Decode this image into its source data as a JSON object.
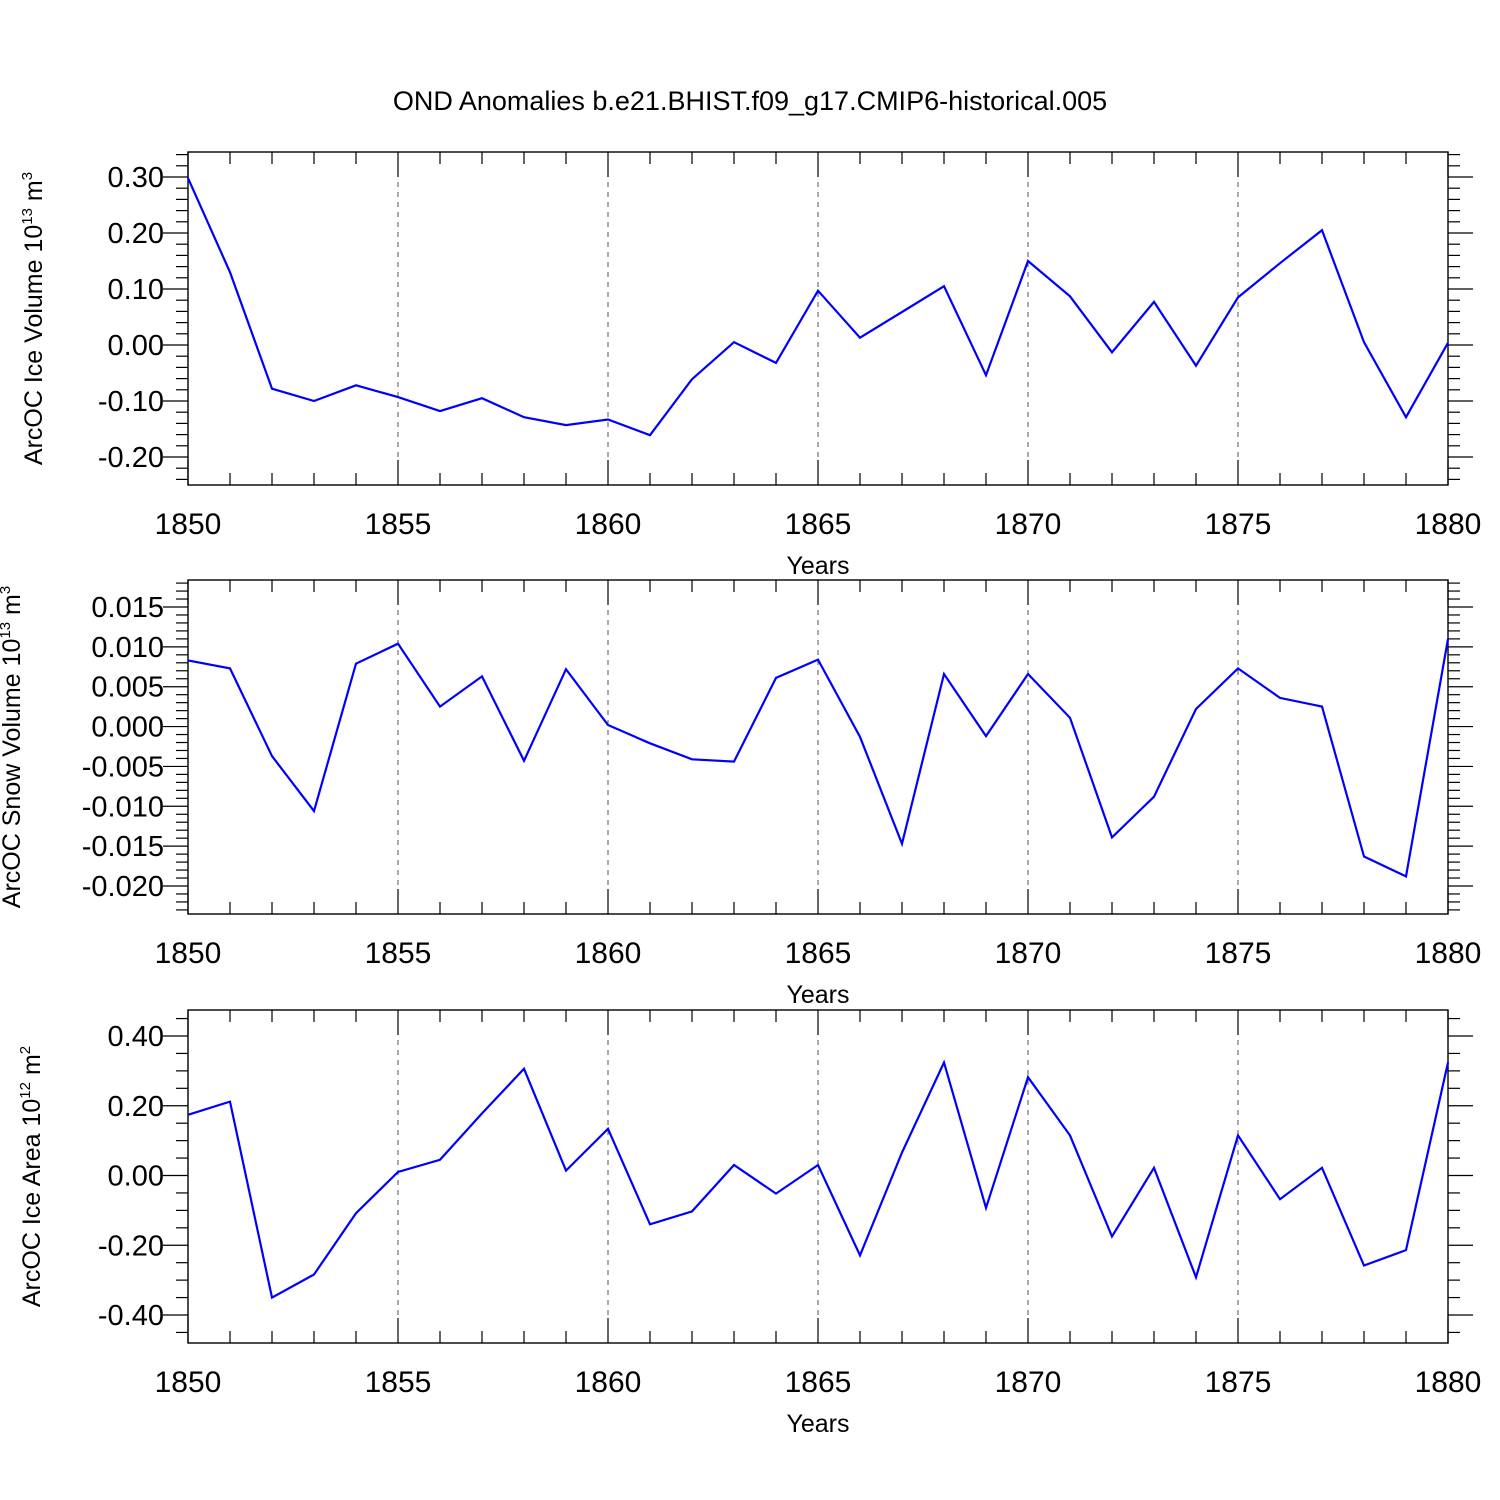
{
  "title": "OND Anomalies b.e21.BHIST.f09_g17.CMIP6-historical.005",
  "line_color": "#0000ff",
  "chart_data": [
    {
      "type": "line",
      "xlabel": "Years",
      "ylabel": {
        "main": "ArcOC Ice Volume 10",
        "exp": "13",
        "unit": " m",
        "unit_exp": "3"
      },
      "xlim": [
        1850,
        1880
      ],
      "ylim": [
        -0.2,
        0.3
      ],
      "x_ticks": [
        "1850",
        "1855",
        "1860",
        "1865",
        "1870",
        "1875",
        "1880"
      ],
      "y_ticks": [
        "0.30",
        "0.20",
        "0.10",
        "0.00",
        "-0.10",
        "-0.20"
      ],
      "y_tick_values": [
        0.3,
        0.2,
        0.1,
        0.0,
        -0.1,
        -0.2
      ],
      "x": [
        1850,
        1851,
        1852,
        1853,
        1854,
        1855,
        1856,
        1857,
        1858,
        1859,
        1860,
        1861,
        1862,
        1863,
        1864,
        1865,
        1866,
        1867,
        1868,
        1869,
        1870,
        1871,
        1872,
        1873,
        1874,
        1875,
        1876,
        1877,
        1878,
        1879,
        1880
      ],
      "values": [
        0.298,
        0.13,
        -0.078,
        -0.1,
        -0.072,
        -0.093,
        -0.118,
        -0.095,
        -0.129,
        -0.143,
        -0.133,
        -0.161,
        -0.061,
        0.005,
        -0.032,
        0.097,
        0.013,
        0.059,
        0.105,
        -0.054,
        0.15,
        0.087,
        -0.013,
        0.077,
        -0.037,
        0.085,
        0.146,
        0.205,
        0.005,
        -0.129,
        0.004
      ]
    },
    {
      "type": "line",
      "xlabel": "Years",
      "ylabel": {
        "main": "ArcOC Snow Volume 10",
        "exp": "13",
        "unit": " m",
        "unit_exp": "3"
      },
      "xlim": [
        1850,
        1880
      ],
      "ylim": [
        -0.02,
        0.015
      ],
      "x_ticks": [
        "1850",
        "1855",
        "1860",
        "1865",
        "1870",
        "1875",
        "1880"
      ],
      "y_ticks": [
        "0.015",
        "0.010",
        "0.005",
        "0.000",
        "-0.005",
        "-0.010",
        "-0.015",
        "-0.020"
      ],
      "y_tick_values": [
        0.015,
        0.01,
        0.005,
        0.0,
        -0.005,
        -0.01,
        -0.015,
        -0.02
      ],
      "x": [
        1850,
        1851,
        1852,
        1853,
        1854,
        1855,
        1856,
        1857,
        1858,
        1859,
        1860,
        1861,
        1862,
        1863,
        1864,
        1865,
        1866,
        1867,
        1868,
        1869,
        1870,
        1871,
        1872,
        1873,
        1874,
        1875,
        1876,
        1877,
        1878,
        1879,
        1880
      ],
      "values": [
        0.0083,
        0.0073,
        -0.0037,
        -0.0106,
        0.0079,
        0.0104,
        0.0025,
        0.0063,
        -0.0043,
        0.0072,
        0.0002,
        -0.0021,
        -0.0041,
        -0.0044,
        0.0061,
        0.0084,
        -0.0013,
        -0.0147,
        0.0066,
        -0.0012,
        0.0066,
        0.0011,
        -0.0139,
        -0.0088,
        0.0022,
        0.0073,
        0.0036,
        0.0025,
        -0.0163,
        -0.0188,
        0.011
      ]
    },
    {
      "type": "line",
      "xlabel": "Years",
      "ylabel": {
        "main": "ArcOC Ice Area 10",
        "exp": "12",
        "unit": " m",
        "unit_exp": "2"
      },
      "xlim": [
        1850,
        1880
      ],
      "ylim": [
        -0.4,
        0.4
      ],
      "x_ticks": [
        "1850",
        "1855",
        "1860",
        "1865",
        "1870",
        "1875",
        "1880"
      ],
      "y_ticks": [
        "0.40",
        "0.20",
        "0.00",
        "-0.20",
        "-0.40"
      ],
      "y_tick_values": [
        0.4,
        0.2,
        0.0,
        -0.2,
        -0.4
      ],
      "x": [
        1850,
        1851,
        1852,
        1853,
        1854,
        1855,
        1856,
        1857,
        1858,
        1859,
        1860,
        1861,
        1862,
        1863,
        1864,
        1865,
        1866,
        1867,
        1868,
        1869,
        1870,
        1871,
        1872,
        1873,
        1874,
        1875,
        1876,
        1877,
        1878,
        1879,
        1880
      ],
      "values": [
        0.174,
        0.212,
        -0.35,
        -0.284,
        -0.108,
        0.01,
        0.045,
        0.178,
        0.306,
        0.014,
        0.134,
        -0.14,
        -0.103,
        0.03,
        -0.052,
        0.03,
        -0.229,
        0.066,
        0.324,
        -0.093,
        0.282,
        0.115,
        -0.175,
        0.022,
        -0.292,
        0.115,
        -0.068,
        0.022,
        -0.258,
        -0.214,
        0.324
      ]
    }
  ]
}
